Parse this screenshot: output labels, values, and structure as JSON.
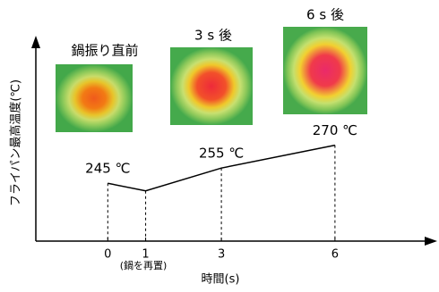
{
  "chart_data": {
    "type": "line",
    "x_label": "時間(s)",
    "y_label": "フライパン最高温度(℃)",
    "x": [
      0,
      1,
      3,
      6
    ],
    "values": [
      245,
      240,
      255,
      270
    ],
    "value_labels": [
      "245 ℃",
      null,
      "255 ℃",
      "270 ℃"
    ],
    "color": "#000000",
    "xlim": [
      -1.9,
      8.7
    ],
    "ylim": [
      207,
      339
    ],
    "xticks": [
      0,
      1,
      3,
      6
    ],
    "annotations": [
      "(鍋を再置)"
    ],
    "images": [
      {
        "label": "鍋振り直前"
      },
      {
        "label": "3 s 後"
      },
      {
        "label": "6 s 後"
      }
    ]
  }
}
